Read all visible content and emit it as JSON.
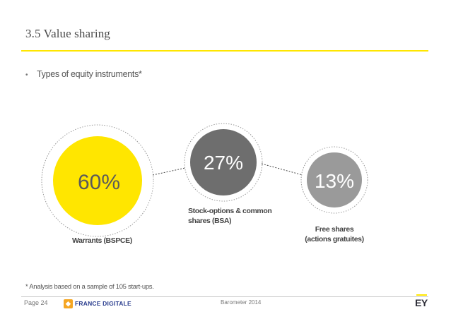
{
  "header": {
    "title": "3.5 Value sharing"
  },
  "bullet": {
    "text": "Types of equity instruments*"
  },
  "chart_data": {
    "type": "bubble",
    "series": [
      {
        "value": "60%",
        "label": "Warrants (BSPCE)",
        "color": "#ffe600",
        "text_color": "#5a5a5a"
      },
      {
        "value": "27%",
        "label": "Stock-options & common shares (BSA)",
        "color": "#6e6e6e",
        "text_color": "#ffffff"
      },
      {
        "value": "13%",
        "label": "Free shares (actions gratuites)",
        "color": "#9a9a9a",
        "text_color": "#ffffff"
      }
    ]
  },
  "labels": {
    "warrants": "Warrants (BSPCE)",
    "stock_line1": "Stock-options & common",
    "stock_line2": "shares (BSA)",
    "free_line1": "Free shares",
    "free_line2": "(actions gratuites)"
  },
  "footnote": "* Analysis based on a sample of 105 start-ups.",
  "footer": {
    "page": "Page 24",
    "partner_logo": "FRANCE DIGITALE",
    "partner_icon": "fd-icon",
    "barometer": "Barometer 2014",
    "brand_logo": "EY"
  }
}
